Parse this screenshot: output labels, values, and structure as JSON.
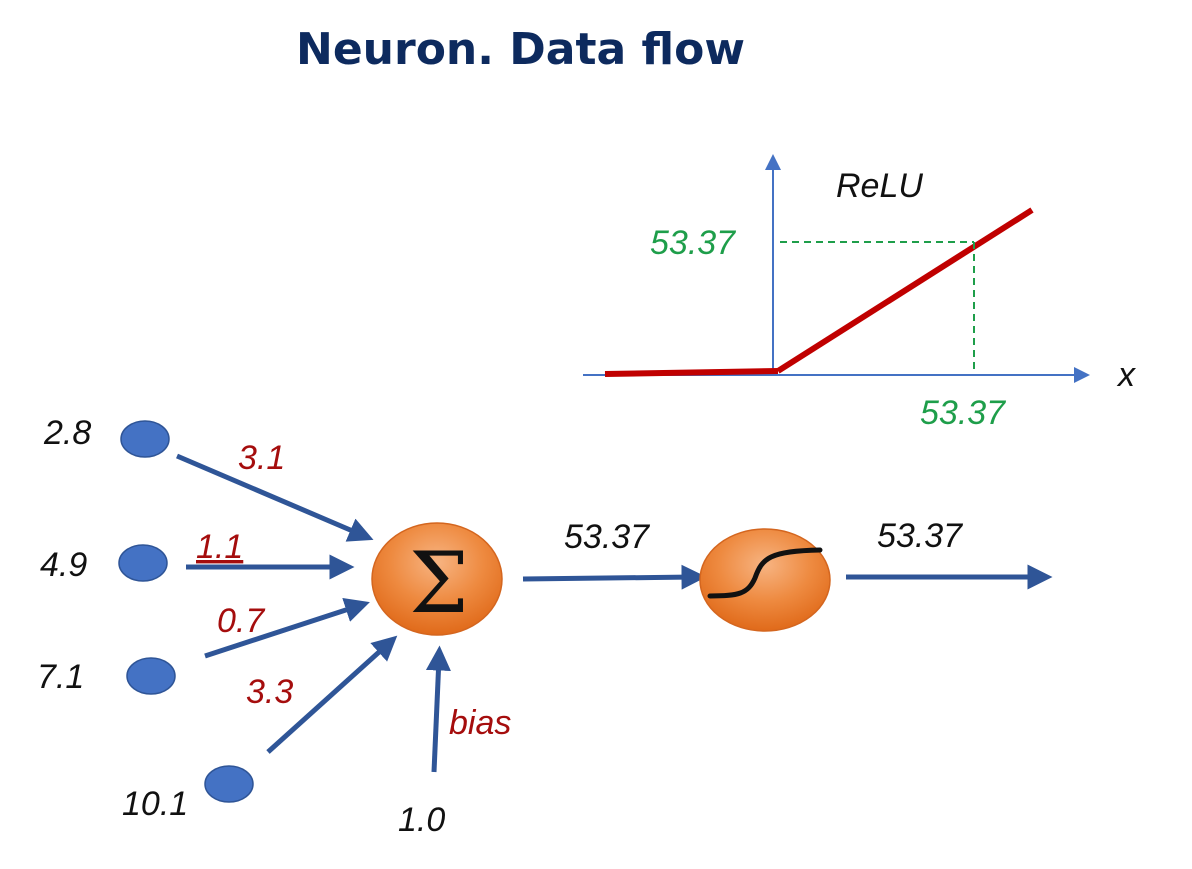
{
  "title": "Neuron. Data flow",
  "inputs": [
    "2.8",
    "4.9",
    "7.1",
    "10.1"
  ],
  "weights": [
    "3.1",
    "1.1",
    "0.7",
    "3.3"
  ],
  "bias": {
    "label": "bias",
    "value": "1.0"
  },
  "sum_node": {
    "symbol": "Σ",
    "output_value": "53.37"
  },
  "activation_node": {
    "output_value": "53.37"
  },
  "relu_plot": {
    "title": "ReLU",
    "x_axis_label": "x",
    "x_marker": "53.37",
    "y_marker": "53.37"
  },
  "colors": {
    "title": "#0d2a5e",
    "arrows": "#2f5597",
    "input_nodes": "#4472c4",
    "neuron_orange": "#ed7d31",
    "weights_text": "#a50d0d",
    "relu_line": "#c00000",
    "relu_axes": "#4472c4",
    "guide_lines": "#1e9e4a"
  }
}
